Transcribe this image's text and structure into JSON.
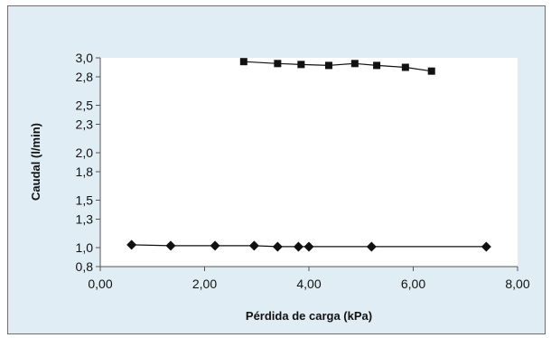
{
  "chart_data": {
    "type": "line",
    "xlabel": "Pérdida de carga (kPa)",
    "ylabel": "Caudal (l/min)",
    "xlim": [
      0,
      8
    ],
    "ylim": [
      0.8,
      3.0
    ],
    "x_ticks": [
      0,
      2,
      4,
      6,
      8
    ],
    "x_tick_labels": [
      "0,00",
      "2,00",
      "4,00",
      "6,00",
      "8,00"
    ],
    "y_ticks": [
      0.8,
      1.0,
      1.3,
      1.5,
      1.8,
      2.0,
      2.3,
      2.5,
      2.8,
      3.0
    ],
    "y_tick_labels": [
      "0,8",
      "1,0",
      "1,3",
      "1,5",
      "1,8",
      "2,0",
      "2,3",
      "2,5",
      "2,8",
      "3,0"
    ],
    "grid": false,
    "legend": "none",
    "series": [
      {
        "marker": "square",
        "color": "#111111",
        "points": [
          {
            "x": 2.75,
            "y": 2.96
          },
          {
            "x": 3.4,
            "y": 2.94
          },
          {
            "x": 3.85,
            "y": 2.93
          },
          {
            "x": 4.38,
            "y": 2.92
          },
          {
            "x": 4.88,
            "y": 2.94
          },
          {
            "x": 5.3,
            "y": 2.92
          },
          {
            "x": 5.85,
            "y": 2.9
          },
          {
            "x": 6.35,
            "y": 2.86
          }
        ]
      },
      {
        "marker": "diamond",
        "color": "#111111",
        "points": [
          {
            "x": 0.6,
            "y": 1.03
          },
          {
            "x": 1.35,
            "y": 1.02
          },
          {
            "x": 2.2,
            "y": 1.02
          },
          {
            "x": 2.95,
            "y": 1.02
          },
          {
            "x": 3.4,
            "y": 1.01
          },
          {
            "x": 3.8,
            "y": 1.01
          },
          {
            "x": 4.0,
            "y": 1.01
          },
          {
            "x": 5.2,
            "y": 1.01
          },
          {
            "x": 7.4,
            "y": 1.01
          }
        ]
      }
    ]
  },
  "colors": {
    "frame_background": "#e1edf5",
    "plot_area": "#ffffff",
    "axis": "#555555"
  }
}
